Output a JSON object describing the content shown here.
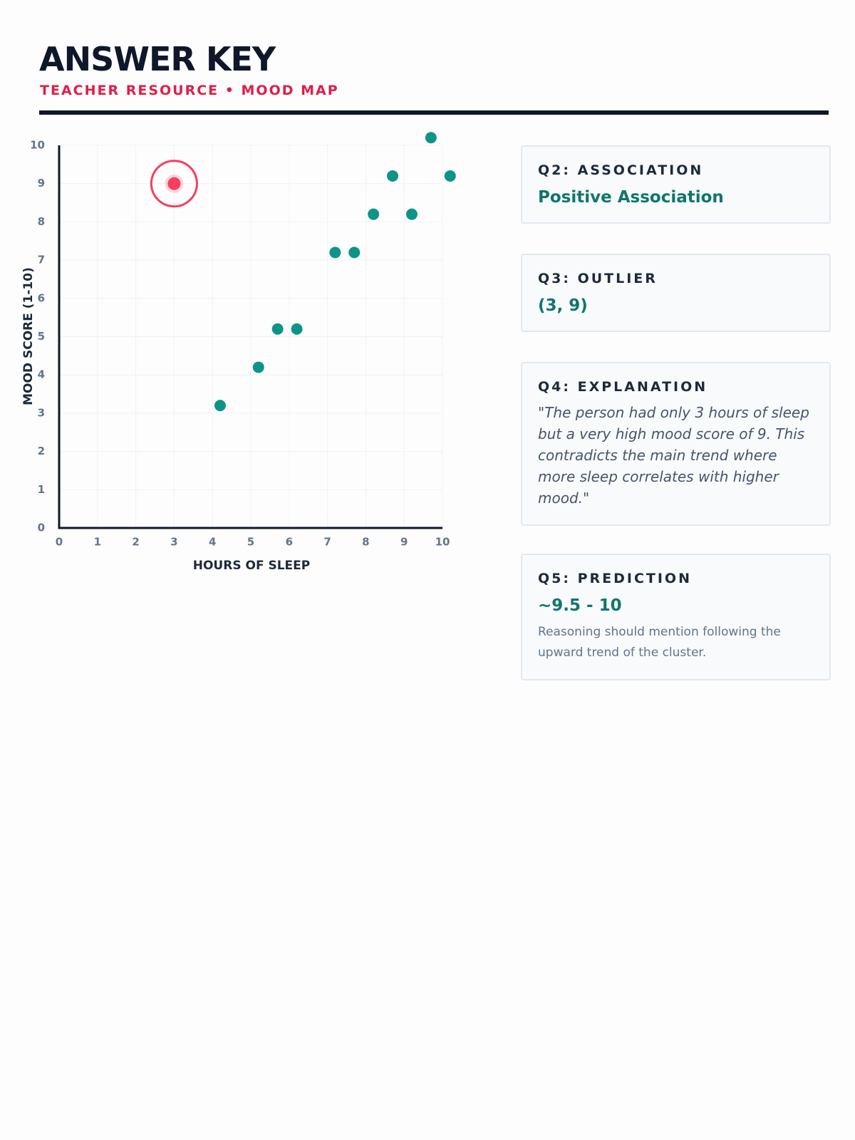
{
  "header": {
    "title": "ANSWER KEY",
    "subtitle": "TEACHER RESOURCE • MOOD MAP"
  },
  "chart_data": {
    "type": "scatter",
    "x_label": "HOURS OF SLEEP",
    "y_label": "MOOD SCORE (1-10)",
    "xlim": [
      0,
      10
    ],
    "ylim": [
      0,
      10
    ],
    "xticks": [
      0,
      1,
      2,
      3,
      4,
      5,
      6,
      7,
      8,
      9,
      10
    ],
    "yticks": [
      0,
      1,
      2,
      3,
      4,
      5,
      6,
      7,
      8,
      9,
      10
    ],
    "grid": true,
    "series": [
      {
        "color": "#0d9488",
        "x": [
          4.2,
          5.2,
          5.7,
          6.2,
          7.2,
          7.7,
          8.2,
          8.7,
          9.2,
          9.7,
          10.2
        ],
        "values": [
          3.2,
          4.2,
          5.2,
          5.2,
          7.2,
          7.2,
          8.2,
          9.2,
          8.2,
          10.2,
          9.2
        ]
      },
      {
        "color": "#f43f5e",
        "x": [
          3
        ],
        "values": [
          9
        ],
        "highlight": true
      }
    ]
  },
  "answers": [
    {
      "label": "Q2: ASSOCIATION",
      "answer": "Positive Association"
    },
    {
      "label": "Q3: OUTLIER",
      "answer": "(3, 9)"
    },
    {
      "label": "Q4: EXPLANATION",
      "answer": "\"The person had only 3 hours of sleep but a very high mood score of 9. This contradicts the main trend where more sleep correlates with higher mood.\""
    },
    {
      "label": "Q5: PREDICTION",
      "answer": "~9.5 - 10",
      "note": "Reasoning should mention following the upward trend of the cluster."
    }
  ]
}
